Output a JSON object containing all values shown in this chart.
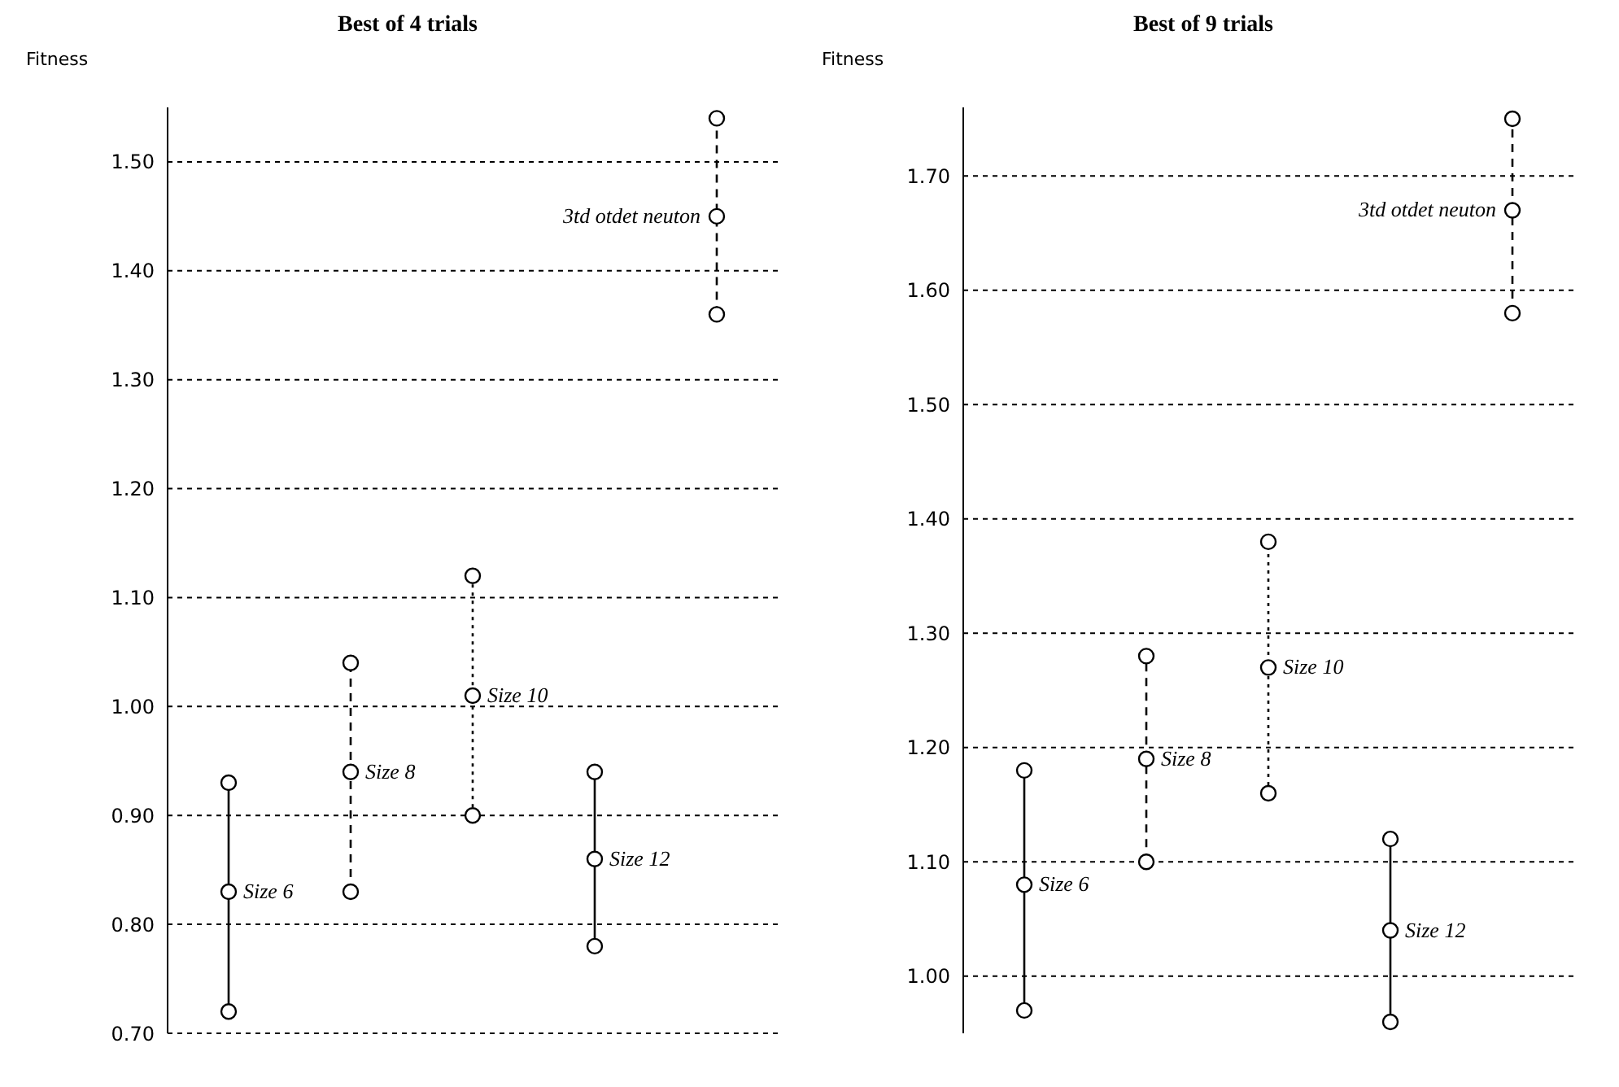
{
  "chart_data": [
    {
      "type": "scatter",
      "title": "Best of 4 trials",
      "ylabel": "Fitness",
      "categories": [
        null,
        null,
        null,
        null,
        null
      ],
      "ylim": [
        0.7,
        1.55
      ],
      "yticks": [
        {
          "value": 0.7,
          "label": "0.70"
        },
        {
          "value": 0.8,
          "label": "0.80"
        },
        {
          "value": 0.9,
          "label": "0.90"
        },
        {
          "value": 1.0,
          "label": "1.00"
        },
        {
          "value": 1.1,
          "label": "1.10"
        },
        {
          "value": 1.2,
          "label": "1.20"
        },
        {
          "value": 1.3,
          "label": "1.30"
        },
        {
          "value": 1.4,
          "label": "1.40"
        },
        {
          "value": 1.5,
          "label": "1.50"
        }
      ],
      "grid": "y",
      "marker": "circle",
      "series": [
        {
          "name": "Size 6",
          "color": "#000000",
          "line_style": "solid",
          "values": [
            0.83,
            null,
            null,
            null,
            null
          ]
        },
        {
          "name": "Size 8",
          "color": "#000000",
          "line_style": "dashed",
          "values": [
            null,
            0.94,
            null,
            null,
            null
          ]
        },
        {
          "name": "Size 10",
          "color": "#000000",
          "line_style": "dotted",
          "values": [
            null,
            null,
            1.01,
            null,
            null
          ]
        },
        {
          "name": "Size 12",
          "color": "#000000",
          "line_style": "solid",
          "values": [
            null,
            null,
            null,
            0.86,
            null
          ]
        },
        {
          "name": "3td otdet neuton",
          "color": "#000000",
          "line_style": "dashed",
          "values": [
            null,
            null,
            null,
            null,
            1.45
          ]
        },
        {
          "color": "#000000",
          "values": [
            0.72,
            0.83,
            0.9,
            0.78,
            1.36
          ]
        },
        {
          "color": "#000000",
          "values": [
            0.93,
            1.04,
            1.12,
            0.94,
            1.54
          ]
        }
      ]
    },
    {
      "type": "scatter",
      "title": "Best of 9 trials",
      "ylabel": "Fitness",
      "categories": [
        null,
        null,
        null,
        null,
        null
      ],
      "ylim": [
        0.95,
        1.76
      ],
      "yticks": [
        {
          "value": 1.0,
          "label": "1.00"
        },
        {
          "value": 1.1,
          "label": "1.10"
        },
        {
          "value": 1.2,
          "label": "1.20"
        },
        {
          "value": 1.3,
          "label": "1.30"
        },
        {
          "value": 1.4,
          "label": "1.40"
        },
        {
          "value": 1.5,
          "label": "1.50"
        },
        {
          "value": 1.6,
          "label": "1.60"
        },
        {
          "value": 1.7,
          "label": "1.70"
        }
      ],
      "grid": "y",
      "marker": "circle",
      "series": [
        {
          "name": "Size 6",
          "color": "#000000",
          "line_style": "solid",
          "values": [
            1.08,
            null,
            null,
            null,
            null
          ]
        },
        {
          "name": "Size 8",
          "color": "#000000",
          "line_style": "dashed",
          "values": [
            null,
            1.19,
            null,
            null,
            null
          ]
        },
        {
          "name": "Size 10",
          "color": "#000000",
          "line_style": "dotted",
          "values": [
            null,
            null,
            1.27,
            null,
            null
          ]
        },
        {
          "name": "Size 12",
          "color": "#000000",
          "line_style": "solid",
          "values": [
            null,
            null,
            null,
            1.04,
            null
          ]
        },
        {
          "name": "3td otdet neuton",
          "color": "#000000",
          "line_style": "dashed",
          "values": [
            null,
            null,
            null,
            null,
            1.67
          ]
        },
        {
          "color": "#000000",
          "values": [
            0.97,
            1.1,
            1.16,
            0.96,
            1.58
          ]
        },
        {
          "color": "#000000",
          "values": [
            1.18,
            1.28,
            1.38,
            1.12,
            1.75
          ]
        }
      ]
    }
  ]
}
